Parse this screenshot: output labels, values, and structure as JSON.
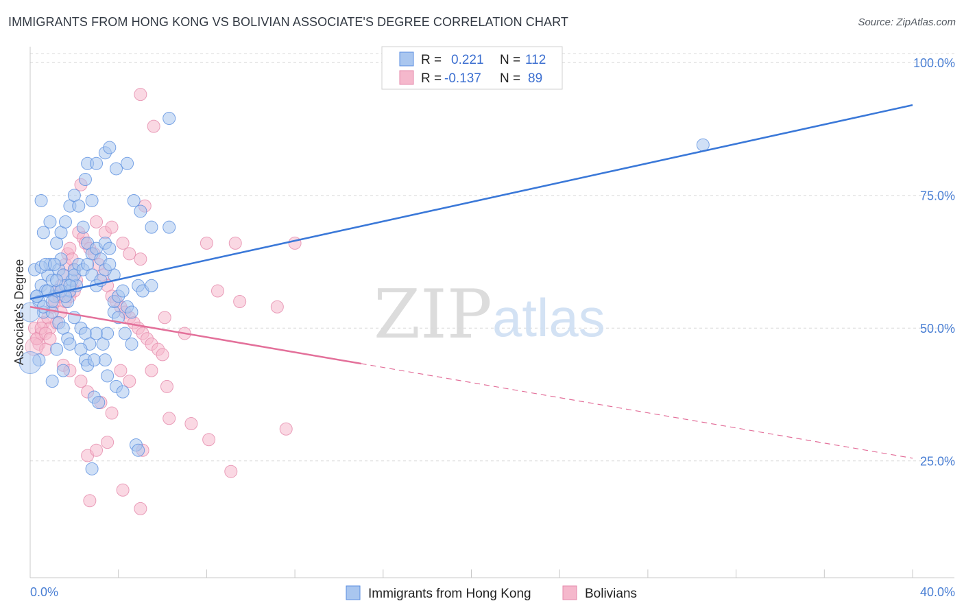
{
  "title": "IMMIGRANTS FROM HONG KONG VS BOLIVIAN ASSOCIATE'S DEGREE CORRELATION CHART",
  "source": "Source: ZipAtlas.com",
  "watermark": {
    "zip": "ZIP",
    "atlas": "atlas"
  },
  "colors": {
    "blue": "#3a78d8",
    "blue_fill": "#a9c6ef",
    "pink": "#e3709a",
    "pink_fill": "#f5b8cc",
    "tick": "#4a7fd4",
    "grid": "#d8d8d8"
  },
  "legend_top": [
    {
      "r_label": "R = ",
      "r_value": "0.221",
      "n_label": "N = ",
      "n_value": "112"
    },
    {
      "r_label": "R = ",
      "r_value": "-0.137",
      "n_label": "N = ",
      "n_value": "89"
    }
  ],
  "chart_data": {
    "type": "scatter",
    "title": "IMMIGRANTS FROM HONG KONG VS BOLIVIAN ASSOCIATE'S DEGREE CORRELATION CHART",
    "xlabel": "",
    "ylabel": "Associate's Degree",
    "xlim": [
      0,
      40
    ],
    "ylim": [
      3,
      103
    ],
    "x_tick_labels": [
      "0.0%",
      "40.0%"
    ],
    "x_minor_ticks": [
      0,
      4,
      8,
      12,
      16,
      20,
      24,
      28,
      32,
      36,
      40
    ],
    "y_ticks": [
      25,
      50,
      75,
      100
    ],
    "y_tick_labels": [
      "25.0%",
      "50.0%",
      "75.0%",
      "100.0%"
    ],
    "grid": true,
    "legend_position": "bottom-center",
    "series": [
      {
        "name": "Immigrants from Hong Kong",
        "color": "#3a78d8",
        "trend": {
          "x0": 0,
          "y0": 55.5,
          "x1": 40,
          "y1": 92,
          "dashed_from": null
        },
        "points": [
          [
            0.2,
            61
          ],
          [
            0.3,
            56
          ],
          [
            0.4,
            55
          ],
          [
            0.5,
            58
          ],
          [
            0.6,
            53
          ],
          [
            0.7,
            57
          ],
          [
            0.8,
            60
          ],
          [
            0.9,
            62
          ],
          [
            1.0,
            59
          ],
          [
            1.1,
            56
          ],
          [
            1.2,
            57
          ],
          [
            1.3,
            61
          ],
          [
            1.4,
            63
          ],
          [
            1.5,
            60
          ],
          [
            1.6,
            58
          ],
          [
            1.7,
            55
          ],
          [
            1.8,
            57
          ],
          [
            1.9,
            59
          ],
          [
            2.0,
            61
          ],
          [
            2.1,
            58
          ],
          [
            0.5,
            74
          ],
          [
            0.6,
            68
          ],
          [
            0.9,
            70
          ],
          [
            1.2,
            66
          ],
          [
            1.4,
            68
          ],
          [
            1.6,
            70
          ],
          [
            1.8,
            73
          ],
          [
            2.0,
            75
          ],
          [
            2.2,
            73
          ],
          [
            2.4,
            69
          ],
          [
            2.6,
            66
          ],
          [
            2.8,
            64
          ],
          [
            3.0,
            65
          ],
          [
            3.2,
            63
          ],
          [
            3.4,
            66
          ],
          [
            3.6,
            65
          ],
          [
            3.8,
            60
          ],
          [
            2.5,
            78
          ],
          [
            2.6,
            81
          ],
          [
            2.8,
            74
          ],
          [
            3.0,
            81
          ],
          [
            3.4,
            83
          ],
          [
            3.6,
            84
          ],
          [
            3.9,
            80
          ],
          [
            4.4,
            81
          ],
          [
            4.7,
            74
          ],
          [
            5.0,
            72
          ],
          [
            5.5,
            69
          ],
          [
            6.3,
            69
          ],
          [
            6.3,
            89.5
          ],
          [
            1.0,
            53
          ],
          [
            1.3,
            51
          ],
          [
            1.5,
            50
          ],
          [
            1.7,
            48
          ],
          [
            2.0,
            52
          ],
          [
            2.3,
            50
          ],
          [
            2.5,
            49
          ],
          [
            2.7,
            47
          ],
          [
            3.0,
            49
          ],
          [
            3.3,
            47
          ],
          [
            3.5,
            49
          ],
          [
            3.8,
            53
          ],
          [
            4.0,
            52
          ],
          [
            4.3,
            49
          ],
          [
            4.6,
            47
          ],
          [
            1.2,
            46
          ],
          [
            1.8,
            47
          ],
          [
            2.3,
            46
          ],
          [
            2.5,
            44
          ],
          [
            2.6,
            43
          ],
          [
            2.9,
            44
          ],
          [
            3.4,
            44
          ],
          [
            3.5,
            41
          ],
          [
            3.9,
            39
          ],
          [
            4.2,
            38
          ],
          [
            2.9,
            37
          ],
          [
            3.1,
            36
          ],
          [
            4.8,
            28
          ],
          [
            4.9,
            27
          ],
          [
            2.8,
            23.5
          ],
          [
            0.4,
            44
          ],
          [
            1.0,
            40
          ],
          [
            1.5,
            42
          ],
          [
            0.3,
            56
          ],
          [
            0.6,
            54
          ],
          [
            0.8,
            57
          ],
          [
            1.0,
            55
          ],
          [
            1.2,
            59
          ],
          [
            1.4,
            57
          ],
          [
            1.6,
            56
          ],
          [
            1.8,
            58
          ],
          [
            2.0,
            60
          ],
          [
            2.2,
            62
          ],
          [
            2.4,
            61
          ],
          [
            2.6,
            62
          ],
          [
            2.8,
            60
          ],
          [
            3.0,
            58
          ],
          [
            3.2,
            59
          ],
          [
            3.4,
            61
          ],
          [
            3.6,
            62
          ],
          [
            3.8,
            55
          ],
          [
            4.0,
            56
          ],
          [
            4.2,
            57
          ],
          [
            4.4,
            54
          ],
          [
            4.6,
            53
          ],
          [
            4.9,
            58
          ],
          [
            5.1,
            57
          ],
          [
            5.5,
            58
          ],
          [
            0.5,
            61.5
          ],
          [
            0.7,
            62
          ],
          [
            1.1,
            62
          ],
          [
            30.5,
            84.5
          ]
        ]
      },
      {
        "name": "Bolivians",
        "color": "#e3709a",
        "trend": {
          "x0": 0,
          "y0": 54,
          "x1": 40,
          "y1": 25.5,
          "dashed_from": 15
        },
        "points": [
          [
            0.2,
            50
          ],
          [
            0.3,
            48
          ],
          [
            0.4,
            47
          ],
          [
            0.5,
            49
          ],
          [
            0.6,
            51
          ],
          [
            0.7,
            46
          ],
          [
            0.8,
            52
          ],
          [
            0.9,
            50
          ],
          [
            1.0,
            54
          ],
          [
            1.1,
            55
          ],
          [
            1.2,
            57
          ],
          [
            1.3,
            56
          ],
          [
            1.4,
            58
          ],
          [
            1.5,
            60
          ],
          [
            1.6,
            62
          ],
          [
            1.7,
            64
          ],
          [
            1.8,
            65
          ],
          [
            1.9,
            63
          ],
          [
            2.0,
            61
          ],
          [
            2.1,
            59
          ],
          [
            2.2,
            68
          ],
          [
            2.4,
            67
          ],
          [
            2.5,
            66
          ],
          [
            2.7,
            65
          ],
          [
            2.9,
            64
          ],
          [
            3.1,
            62
          ],
          [
            3.3,
            60
          ],
          [
            3.5,
            58
          ],
          [
            3.7,
            56
          ],
          [
            3.9,
            55
          ],
          [
            4.1,
            54
          ],
          [
            4.3,
            53
          ],
          [
            4.5,
            52
          ],
          [
            4.7,
            51
          ],
          [
            4.9,
            50
          ],
          [
            5.1,
            49
          ],
          [
            5.3,
            48
          ],
          [
            5.5,
            47
          ],
          [
            5.8,
            46
          ],
          [
            6.0,
            45
          ],
          [
            2.3,
            77
          ],
          [
            3.0,
            70
          ],
          [
            3.4,
            68
          ],
          [
            3.7,
            69
          ],
          [
            4.2,
            66
          ],
          [
            4.5,
            64
          ],
          [
            5.0,
            63
          ],
          [
            5.2,
            73
          ],
          [
            6.1,
            52
          ],
          [
            7.0,
            49
          ],
          [
            5.0,
            94
          ],
          [
            5.6,
            88
          ],
          [
            8.0,
            66
          ],
          [
            9.3,
            66
          ],
          [
            8.5,
            57
          ],
          [
            9.5,
            55
          ],
          [
            11.2,
            54
          ],
          [
            12.0,
            66
          ],
          [
            1.5,
            43
          ],
          [
            1.8,
            42
          ],
          [
            2.3,
            40
          ],
          [
            2.6,
            38
          ],
          [
            3.2,
            36
          ],
          [
            3.7,
            34
          ],
          [
            4.1,
            42
          ],
          [
            4.5,
            40
          ],
          [
            5.5,
            42
          ],
          [
            6.2,
            39
          ],
          [
            6.3,
            33
          ],
          [
            7.3,
            32
          ],
          [
            8.1,
            29
          ],
          [
            9.1,
            23
          ],
          [
            11.6,
            31
          ],
          [
            5.1,
            27
          ],
          [
            3.5,
            28.5
          ],
          [
            2.6,
            26
          ],
          [
            3.0,
            27
          ],
          [
            4.2,
            19.5
          ],
          [
            2.7,
            17.5
          ],
          [
            5.0,
            16
          ],
          [
            0.3,
            48
          ],
          [
            0.5,
            50
          ],
          [
            0.7,
            49
          ],
          [
            0.9,
            48
          ],
          [
            1.2,
            51
          ],
          [
            1.4,
            53
          ],
          [
            1.6,
            55
          ],
          [
            1.8,
            56
          ],
          [
            2.0,
            57
          ]
        ]
      }
    ]
  }
}
